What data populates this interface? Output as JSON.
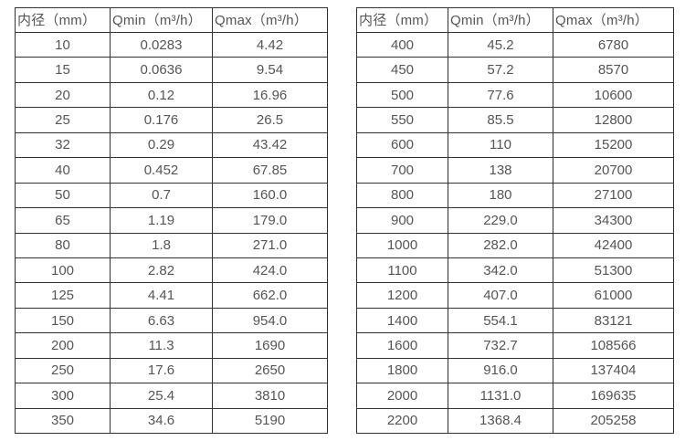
{
  "colors": {
    "background": "#ffffff",
    "border": "#333333",
    "text": "#555555"
  },
  "tables": [
    {
      "name": "flow-rate-table-small-diameters",
      "headers": [
        "内径（mm）",
        "Qmin（m³/h）",
        "Qmax（m³/h）"
      ],
      "rows": [
        [
          "10",
          "0.0283",
          "4.42"
        ],
        [
          "15",
          "0.0636",
          "9.54"
        ],
        [
          "20",
          "0.12",
          "16.96"
        ],
        [
          "25",
          "0.176",
          "26.5"
        ],
        [
          "32",
          "0.29",
          "43.42"
        ],
        [
          "40",
          "0.452",
          "67.85"
        ],
        [
          "50",
          "0.7",
          "160.0"
        ],
        [
          "65",
          "1.19",
          "179.0"
        ],
        [
          "80",
          "1.8",
          "271.0"
        ],
        [
          "100",
          "2.82",
          "424.0"
        ],
        [
          "125",
          "4.41",
          "662.0"
        ],
        [
          "150",
          "6.63",
          "954.0"
        ],
        [
          "200",
          "11.3",
          "1690"
        ],
        [
          "250",
          "17.6",
          "2650"
        ],
        [
          "300",
          "25.4",
          "3810"
        ],
        [
          "350",
          "34.6",
          "5190"
        ]
      ]
    },
    {
      "name": "flow-rate-table-large-diameters",
      "headers": [
        "内径（mm）",
        "Qmin（m³/h）",
        "Qmax（m³/h）"
      ],
      "rows": [
        [
          "400",
          "45.2",
          "6780"
        ],
        [
          "450",
          "57.2",
          "8570"
        ],
        [
          "500",
          "77.6",
          "10600"
        ],
        [
          "550",
          "85.5",
          "12800"
        ],
        [
          "600",
          "110",
          "15200"
        ],
        [
          "700",
          "138",
          "20700"
        ],
        [
          "800",
          "180",
          "27100"
        ],
        [
          "900",
          "229.0",
          "34300"
        ],
        [
          "1000",
          "282.0",
          "42400"
        ],
        [
          "1100",
          "342.0",
          "51300"
        ],
        [
          "1200",
          "407.0",
          "61000"
        ],
        [
          "1400",
          "554.1",
          "83121"
        ],
        [
          "1600",
          "732.7",
          "108566"
        ],
        [
          "1800",
          "916.0",
          "137404"
        ],
        [
          "2000",
          "1131.0",
          "169635"
        ],
        [
          "2200",
          "1368.4",
          "205258"
        ]
      ]
    }
  ]
}
